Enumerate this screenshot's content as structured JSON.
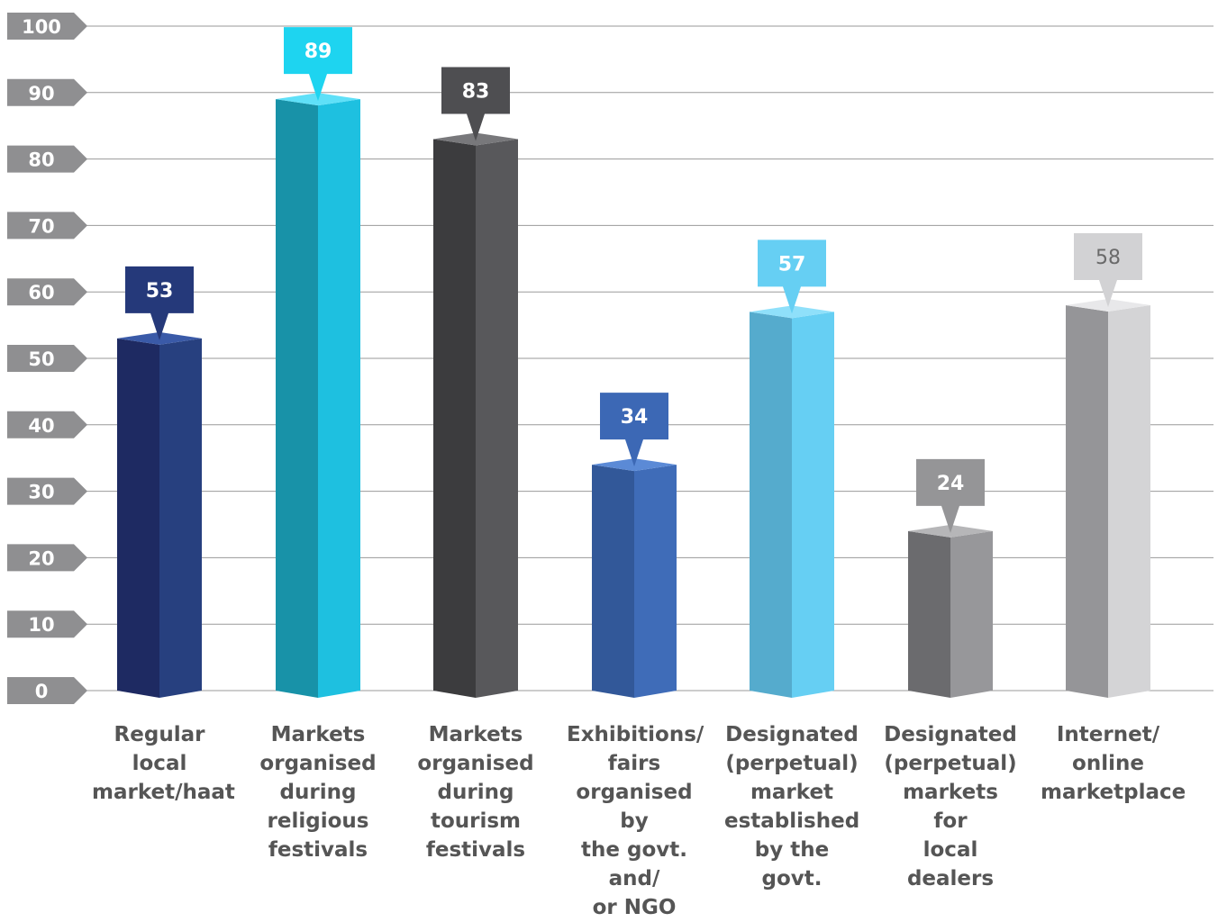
{
  "chart_data": {
    "type": "bar",
    "ylim": [
      0,
      100
    ],
    "yticks": [
      "0",
      "10",
      "20",
      "30",
      "40",
      "50",
      "60",
      "70",
      "80",
      "90",
      "100"
    ],
    "grid": true,
    "categories": [
      "Regular local\nmarket/haat",
      "Markets\norganised\nduring\nreligious\nfestivals",
      "Markets\norganised\nduring\ntourism\nfestivals",
      "Exhibitions/\nfairs\norganised by\nthe govt. and/\nor NGO",
      "Designated\n(perpetual)\nmarket\nestablished\nby the govt.",
      "Designated\n(perpetual)\nmarkets for\nlocal dealers",
      "Internet/\nonline\nmarketplace"
    ],
    "values": [
      53,
      89,
      83,
      34,
      57,
      24,
      58
    ],
    "data_labels": [
      "53",
      "89",
      "83",
      "34",
      "57",
      "24",
      "58"
    ],
    "colors": [
      {
        "left": "#1e2a62",
        "right": "#27407f",
        "top": "#3a5aa8",
        "callout": "#25397a",
        "label_text": "#ffffff"
      },
      {
        "left": "#1892a8",
        "right": "#1ec0e0",
        "top": "#5fe0f8",
        "callout": "#1ed4f0",
        "label_text": "#ffffff"
      },
      {
        "left": "#3c3c3e",
        "right": "#58585b",
        "top": "#78787b",
        "callout": "#4e4e51",
        "label_text": "#ffffff"
      },
      {
        "left": "#325899",
        "right": "#3f6cb8",
        "top": "#5b8ad6",
        "callout": "#3c68b5",
        "label_text": "#ffffff"
      },
      {
        "left": "#55abcd",
        "right": "#66cff3",
        "top": "#8fe0fa",
        "callout": "#66cff3",
        "label_text": "#ffffff"
      },
      {
        "left": "#6b6b6e",
        "right": "#97979a",
        "top": "#b6b6b8",
        "callout": "#959597",
        "label_text": "#ffffff"
      },
      {
        "left": "#959598",
        "right": "#d4d4d6",
        "top": "#e8e8ea",
        "callout": "#d2d2d4",
        "label_text": "#6a6a6a"
      }
    ],
    "tick_tag_color": "#8f8f91",
    "grid_color": "#9a9a9a",
    "category_text_color": "#555555"
  }
}
